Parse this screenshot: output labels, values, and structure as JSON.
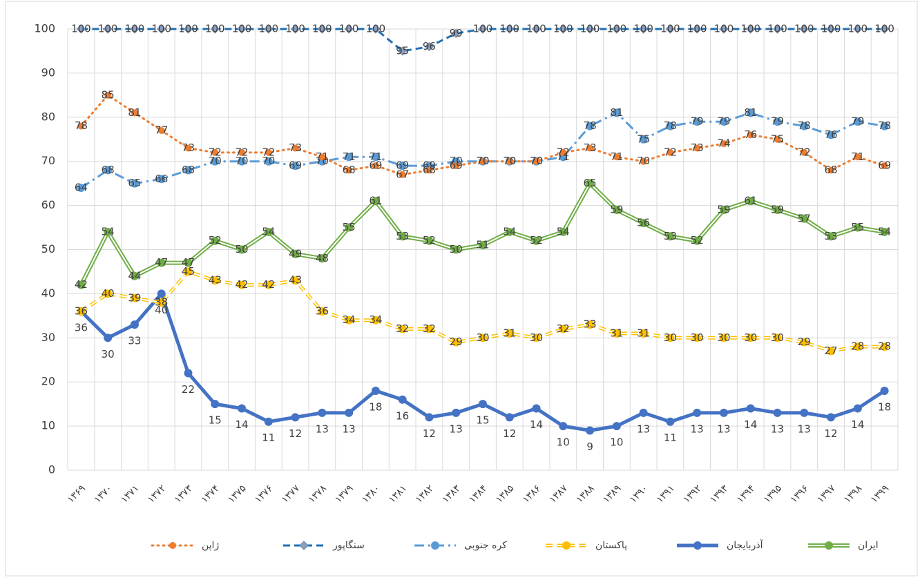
{
  "chart_data": {
    "type": "line",
    "categories": [
      "۱۳۶۹",
      "۱۳۷۰",
      "۱۳۷۱",
      "۱۳۷۲",
      "۱۳۷۳",
      "۱۳۷۴",
      "۱۳۷۵",
      "۱۳۷۶",
      "۱۳۷۷",
      "۱۳۷۸",
      "۱۳۷۹",
      "۱۳۸۰",
      "۱۳۸۱",
      "۱۳۸۲",
      "۱۳۸۳",
      "۱۳۸۴",
      "۱۳۸۵",
      "۱۳۸۶",
      "۱۳۸۷",
      "۱۳۸۸",
      "۱۳۸۹",
      "۱۳۹۰",
      "۱۳۹۱",
      "۱۳۹۲",
      "۱۳۹۳",
      "۱۳۹۴",
      "۱۳۹۵",
      "۱۳۹۶",
      "۱۳۹۷",
      "۱۳۹۸",
      "۱۳۹۹"
    ],
    "series": [
      {
        "name": "ایران",
        "color": "#70ad47",
        "values": [
          42,
          54,
          44,
          47,
          47,
          52,
          50,
          54,
          49,
          48,
          55,
          61,
          53,
          52,
          50,
          51,
          54,
          52,
          54,
          65,
          59,
          56,
          53,
          52,
          59,
          61,
          59,
          57,
          53,
          55,
          54
        ]
      },
      {
        "name": "آذربایجان",
        "color": "#4472c4",
        "values": [
          36,
          30,
          33,
          40,
          22,
          15,
          14,
          11,
          12,
          13,
          13,
          18,
          16,
          12,
          13,
          15,
          12,
          14,
          10,
          9,
          10,
          13,
          11,
          13,
          13,
          14,
          13,
          13,
          12,
          14,
          18
        ]
      },
      {
        "name": "پاکستان",
        "color": "#ffc000",
        "values": [
          36,
          40,
          39,
          38,
          45,
          43,
          42,
          42,
          43,
          36,
          34,
          34,
          32,
          32,
          29,
          30,
          31,
          30,
          32,
          33,
          31,
          31,
          30,
          30,
          30,
          30,
          30,
          29,
          27,
          28,
          28
        ]
      },
      {
        "name": "کره جنوبی",
        "color": "#5b9bd5",
        "values": [
          64,
          68,
          65,
          66,
          68,
          70,
          70,
          70,
          69,
          70,
          71,
          71,
          69,
          69,
          70,
          70,
          70,
          70,
          71,
          78,
          81,
          75,
          78,
          79,
          79,
          81,
          79,
          78,
          76,
          79,
          78
        ]
      },
      {
        "name": "سنگاپور",
        "color": "#1f6fb4",
        "values": [
          100,
          100,
          100,
          100,
          100,
          100,
          100,
          100,
          100,
          100,
          100,
          100,
          95,
          96,
          99,
          100,
          100,
          100,
          100,
          100,
          100,
          100,
          100,
          100,
          100,
          100,
          100,
          100,
          100,
          100,
          100
        ]
      },
      {
        "name": "ژاپن",
        "color": "#ed7d31",
        "values": [
          78,
          85,
          81,
          77,
          73,
          72,
          72,
          72,
          73,
          71,
          68,
          69,
          67,
          68,
          69,
          70,
          70,
          70,
          72,
          73,
          71,
          70,
          72,
          73,
          74,
          76,
          75,
          72,
          68,
          71,
          69
        ]
      }
    ],
    "ylim": [
      0,
      100
    ],
    "yticks": [
      0,
      10,
      20,
      30,
      40,
      50,
      60,
      70,
      80,
      90,
      100
    ],
    "grid": true,
    "legend": "bottom"
  }
}
